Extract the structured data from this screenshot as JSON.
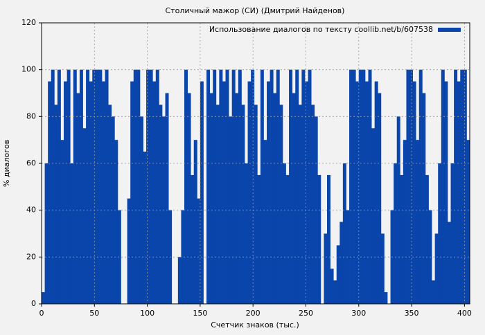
{
  "chart_data": {
    "type": "bar",
    "title": "Столичный мажор (СИ) (Дмитрий Найденов)",
    "x_label": "Счетчик знаков (тыс.)",
    "y_label": "% диалогов",
    "x": [
      0,
      3,
      6,
      9,
      12,
      15,
      18,
      21,
      24,
      27,
      30,
      33,
      36,
      39,
      42,
      45,
      48,
      51,
      54,
      57,
      60,
      63,
      66,
      69,
      72,
      75,
      78,
      81,
      84,
      87,
      90,
      93,
      96,
      99,
      102,
      105,
      108,
      111,
      114,
      117,
      120,
      123,
      126,
      129,
      132,
      135,
      138,
      141,
      144,
      147,
      150,
      153,
      156,
      159,
      162,
      165,
      168,
      171,
      174,
      177,
      180,
      183,
      186,
      189,
      192,
      195,
      198,
      201,
      204,
      207,
      210,
      213,
      216,
      219,
      222,
      225,
      228,
      231,
      234,
      237,
      240,
      243,
      246,
      249,
      252,
      255,
      258,
      261,
      264,
      267,
      270,
      273,
      276,
      279,
      282,
      285,
      288,
      291,
      294,
      297,
      300,
      303,
      306,
      309,
      312,
      315,
      318,
      321,
      324,
      327,
      330,
      333,
      336,
      339,
      342,
      345,
      348,
      351,
      354,
      357,
      360,
      363,
      366,
      369,
      372,
      375,
      378,
      381,
      384,
      387,
      390,
      393,
      396,
      399,
      402
    ],
    "series": [
      {
        "name": "Использование диалогов по тексту coollib.net/b/607538",
        "color": "#0a45ab",
        "values": [
          5,
          60,
          95,
          100,
          85,
          100,
          70,
          95,
          100,
          60,
          100,
          90,
          100,
          75,
          100,
          95,
          100,
          100,
          100,
          95,
          100,
          85,
          80,
          70,
          40,
          0,
          0,
          45,
          95,
          100,
          100,
          80,
          65,
          100,
          100,
          95,
          100,
          85,
          80,
          90,
          40,
          0,
          0,
          20,
          40,
          100,
          90,
          55,
          70,
          45,
          95,
          0,
          100,
          90,
          100,
          85,
          100,
          95,
          100,
          80,
          100,
          90,
          100,
          85,
          60,
          95,
          100,
          85,
          55,
          100,
          70,
          95,
          100,
          90,
          100,
          85,
          60,
          55,
          100,
          90,
          100,
          85,
          100,
          95,
          100,
          85,
          80,
          55,
          0,
          30,
          55,
          15,
          10,
          25,
          35,
          60,
          40,
          100,
          100,
          95,
          100,
          100,
          95,
          100,
          75,
          95,
          90,
          30,
          5,
          0,
          40,
          60,
          80,
          55,
          70,
          100,
          100,
          95,
          70,
          100,
          90,
          55,
          40,
          10,
          30,
          60,
          100,
          95,
          35,
          60,
          100,
          95,
          100,
          100,
          70
        ]
      }
    ],
    "xlim": [
      0,
      405
    ],
    "ylim": [
      0,
      120
    ],
    "xticks": [
      0,
      50,
      100,
      150,
      200,
      250,
      300,
      350,
      400
    ],
    "yticks": [
      0,
      20,
      40,
      60,
      80,
      100,
      120
    ],
    "grid": true,
    "legend": "top-right"
  }
}
